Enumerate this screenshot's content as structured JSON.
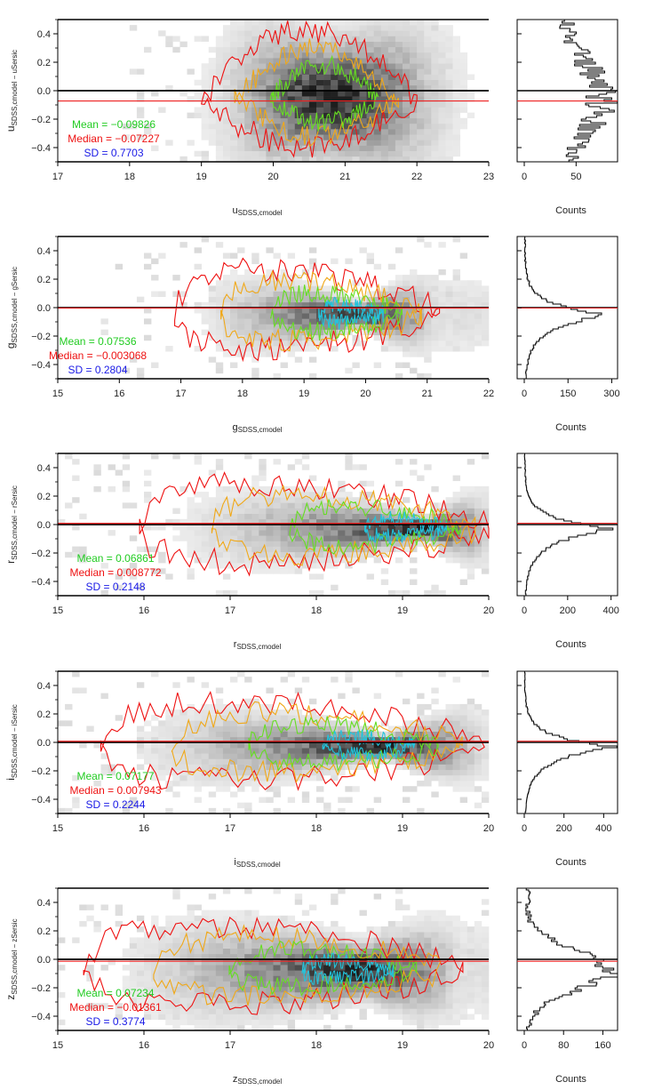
{
  "figure": {
    "count_label": "Counts",
    "colors": {
      "mean": "#22cc22",
      "median": "#ee1111",
      "sd": "#1a1ae6",
      "zero_line": "#000000",
      "median_line": "#ee2222",
      "contour_outer": "#ee1111",
      "contour_mid": "#f0a818",
      "contour_inner": "#66dd22",
      "contour_core": "#22c4dd",
      "histogram": "#000000"
    }
  },
  "chart_data": [
    {
      "type": "heatmap",
      "band": "u",
      "ylabel_main": "u",
      "ylabel_sub": "SDSS,cmodel − u",
      "ylabel_sub2": "Sersic",
      "xlabel_main": "u",
      "xlabel_sub": "SDSS,cmodel",
      "xlim": [
        17,
        23
      ],
      "xticks": [
        "17",
        "18",
        "19",
        "20",
        "21",
        "22",
        "23"
      ],
      "ylim": [
        -0.5,
        0.5
      ],
      "yticks": [
        "-0.4",
        "-0.2",
        "0.0",
        "0.2",
        "0.4"
      ],
      "center": 20.85,
      "halfwidth": 1.05,
      "contour_x_range": [
        19.0,
        22.0
      ],
      "mean_label": "Mean = −0.09826",
      "median_label": "Median = −0.07227",
      "sd_label": "SD = 0.7703",
      "mean": -0.09826,
      "median": -0.07227,
      "sd": 0.7703,
      "hist_xlim": [
        0,
        90
      ],
      "hist_xticks": [
        "0",
        "50"
      ],
      "hist_peak": 80,
      "hist_peak_y": -0.05,
      "hist_profile": "flat"
    },
    {
      "type": "heatmap",
      "band": "g",
      "ylabel_main": "g",
      "ylabel_sub": "SDSS,cmodel − g",
      "ylabel_sub2": "Sersic",
      "xlabel_main": "g",
      "xlabel_sub": "SDSS,cmodel",
      "xlim": [
        15,
        22
      ],
      "xticks": [
        "15",
        "16",
        "17",
        "18",
        "19",
        "20",
        "21",
        "22"
      ],
      "ylim": [
        -0.5,
        0.5
      ],
      "yticks": [
        "-0.4",
        "-0.2",
        "0.0",
        "0.2",
        "0.4"
      ],
      "center": 19.9,
      "halfwidth": 0.9,
      "contour_x_range": [
        16.9,
        21.2
      ],
      "mean_label": "Mean = 0.07536",
      "median_label": "Median = −0.003068",
      "sd_label": "SD = 0.2804",
      "mean": 0.07536,
      "median": -0.003068,
      "sd": 0.2804,
      "hist_xlim": [
        0,
        320
      ],
      "hist_xticks": [
        "0",
        "150",
        "300"
      ],
      "hist_peak": 290,
      "hist_peak_y": -0.05,
      "hist_profile": "peaked"
    },
    {
      "type": "heatmap",
      "band": "r",
      "ylabel_main": "r",
      "ylabel_sub": "SDSS,cmodel − r",
      "ylabel_sub2": "Sersic",
      "xlabel_main": "r",
      "xlabel_sub": "SDSS,cmodel",
      "xlim": [
        15,
        20
      ],
      "xticks": [
        "15",
        "16",
        "17",
        "18",
        "19",
        "20"
      ],
      "ylim": [
        -0.5,
        0.5
      ],
      "yticks": [
        "-0.4",
        "-0.2",
        "0.0",
        "0.2",
        "0.4"
      ],
      "center": 19.3,
      "halfwidth": 0.55,
      "contour_x_range": [
        15.95,
        20.0
      ],
      "mean_label": "Mean = 0.06861",
      "median_label": "Median = 0.008772",
      "sd_label": "SD = 0.2148",
      "mean": 0.06861,
      "median": 0.008772,
      "sd": 0.2148,
      "hist_xlim": [
        0,
        430
      ],
      "hist_xticks": [
        "0",
        "200",
        "400"
      ],
      "hist_peak": 410,
      "hist_peak_y": -0.03,
      "hist_profile": "peaked"
    },
    {
      "type": "heatmap",
      "band": "i",
      "ylabel_main": "i",
      "ylabel_sub": "SDSS,cmodel − i",
      "ylabel_sub2": "Sersic",
      "xlabel_main": "i",
      "xlabel_sub": "SDSS,cmodel",
      "xlim": [
        15,
        20
      ],
      "xticks": [
        "15",
        "16",
        "17",
        "18",
        "19",
        "20"
      ],
      "ylim": [
        -0.5,
        0.5
      ],
      "yticks": [
        "-0.4",
        "-0.2",
        "0.0",
        "0.2",
        "0.4"
      ],
      "center": 18.8,
      "halfwidth": 0.6,
      "contour_x_range": [
        15.5,
        19.95
      ],
      "mean_label": "Mean = 0.07177",
      "median_label": "Median = 0.007943",
      "sd_label": "SD = 0.2244",
      "mean": 0.07177,
      "median": 0.007943,
      "sd": 0.2244,
      "hist_xlim": [
        0,
        470
      ],
      "hist_xticks": [
        "0",
        "200",
        "400"
      ],
      "hist_peak": 440,
      "hist_peak_y": -0.03,
      "hist_profile": "peaked"
    },
    {
      "type": "heatmap",
      "band": "z",
      "ylabel_main": "z",
      "ylabel_sub": "SDSS,cmodel − z",
      "ylabel_sub2": "Sersic",
      "xlabel_main": "z",
      "xlabel_sub": "SDSS,cmodel",
      "xlim": [
        15,
        20
      ],
      "xticks": [
        "15",
        "16",
        "17",
        "18",
        "19",
        "20"
      ],
      "ylim": [
        -0.5,
        0.5
      ],
      "yticks": [
        "-0.4",
        "-0.2",
        "0.0",
        "0.2",
        "0.4"
      ],
      "center": 18.55,
      "halfwidth": 0.55,
      "contour_x_range": [
        15.3,
        19.7
      ],
      "mean_label": "Mean = 0.07234",
      "median_label": "Median = −0.01361",
      "sd_label": "SD = 0.3774",
      "mean": 0.07234,
      "median": -0.01361,
      "sd": 0.3774,
      "hist_xlim": [
        0,
        190
      ],
      "hist_xticks": [
        "0",
        "80",
        "160"
      ],
      "hist_peak": 170,
      "hist_peak_y": -0.08,
      "hist_profile": "broad"
    }
  ]
}
